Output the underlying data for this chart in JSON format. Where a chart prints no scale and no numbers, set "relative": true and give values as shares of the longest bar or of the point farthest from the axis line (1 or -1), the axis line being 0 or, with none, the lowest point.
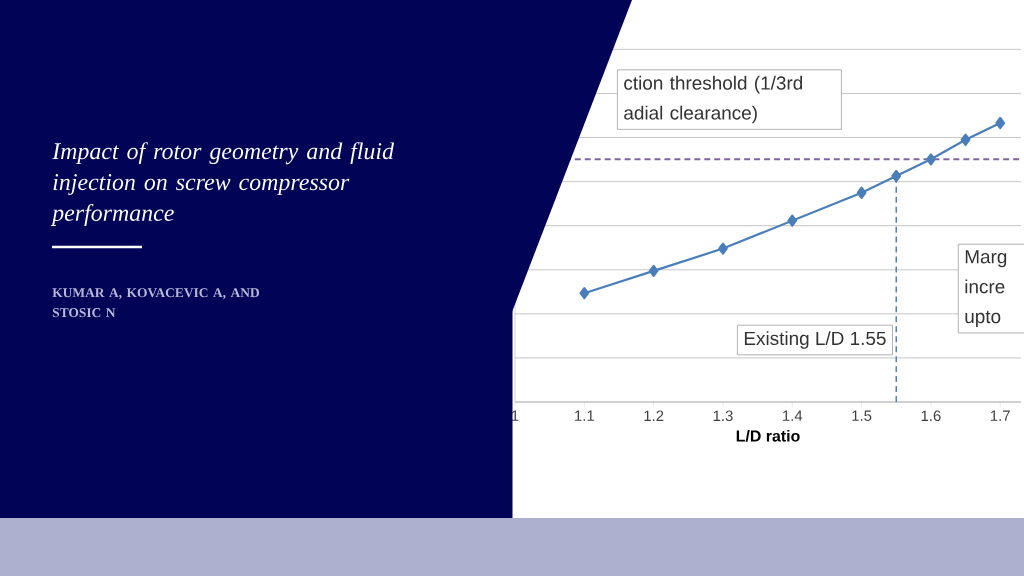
{
  "chart_data": {
    "type": "line",
    "title": "Impact of rotor geometry and fluid injection on screw compressor performance",
    "subtitle": "KUMAR A, KOVACEVIC A, AND STOSIC N",
    "xlabel": "L/D ratio",
    "x": [
      1.1,
      1.2,
      1.3,
      1.4,
      1.5,
      1.55,
      1.6,
      1.65,
      1.7
    ],
    "values": [
      0.39,
      0.47,
      0.55,
      0.65,
      0.75,
      0.81,
      0.87,
      0.94,
      1
    ],
    "color": "#4a7ebb",
    "marker": "diamond",
    "relative": true,
    "xlim": [
      1,
      1.73
    ],
    "xticks": [
      1,
      1.1,
      1.2,
      1.3,
      1.4,
      1.5,
      1.6,
      1.7
    ],
    "grid": "y",
    "ref_lines": [
      {
        "axis": "y",
        "value": 0.87,
        "label": "ction threshold (1/3rd adial clearance)",
        "color": "#8064a2",
        "line_style": "dashed"
      },
      {
        "axis": "x",
        "value": 1.55,
        "label": "Existing L/D 1.55",
        "color": "#4f81bd",
        "line_style": "dashed"
      }
    ],
    "annotations": [
      "Marg incre upto"
    ]
  }
}
